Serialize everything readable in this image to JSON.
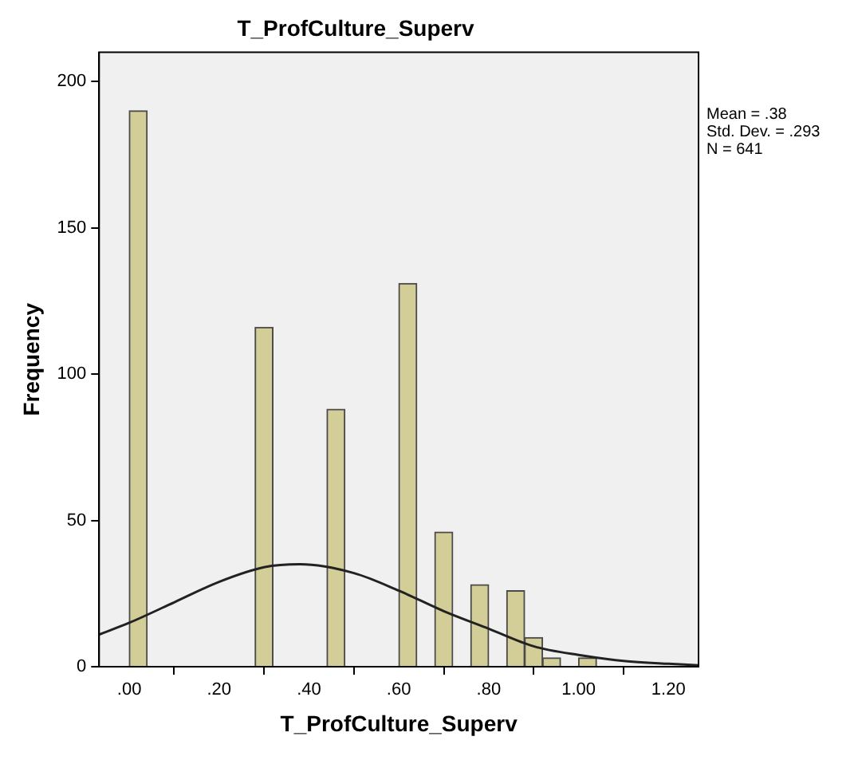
{
  "chart_data": {
    "type": "histogram",
    "title": "T_ProfCulture_Superv",
    "xlabel": "T_ProfCulture_Superv",
    "ylabel": "Frequency",
    "bins": [
      0,
      0.04,
      0.08,
      0.12,
      0.16,
      0.2,
      0.24,
      0.28,
      0.32,
      0.36,
      0.4,
      0.44,
      0.48,
      0.52,
      0.56,
      0.6,
      0.64,
      0.68,
      0.72,
      0.76,
      0.8,
      0.84,
      0.88,
      0.92,
      0.96,
      1.0,
      1.04
    ],
    "values": [
      190,
      0,
      0,
      0,
      0,
      0,
      0,
      116,
      0,
      0,
      0,
      88,
      0,
      0,
      0,
      131,
      0,
      46,
      0,
      28,
      0,
      26,
      10,
      3,
      0,
      3
    ],
    "color": "#d3ce97",
    "series": [
      {
        "type": "line",
        "color": "#222222",
        "x": [
          -0.067,
          0,
          0.1,
          0.2,
          0.3,
          0.38,
          0.5,
          0.6,
          0.7,
          0.8,
          0.9,
          1.0,
          1.1,
          1.2,
          1.267
        ],
        "values": [
          11,
          15,
          22,
          29,
          34,
          35,
          32,
          26,
          19,
          13,
          7,
          4,
          2,
          1,
          0.5
        ]
      }
    ],
    "xlim": [
      -0.067,
      1.267
    ],
    "xticks": [
      {
        "value": 0,
        "label": ".00"
      },
      {
        "value": 0.2,
        "label": ".20"
      },
      {
        "value": 0.4,
        "label": ".40"
      },
      {
        "value": 0.6,
        "label": ".60"
      },
      {
        "value": 0.8,
        "label": ".80"
      },
      {
        "value": 1.0,
        "label": "1.00"
      },
      {
        "value": 1.2,
        "label": "1.20"
      }
    ],
    "ylim": [
      0,
      210
    ],
    "yticks": [
      0,
      50,
      100,
      150,
      200
    ],
    "grid": false,
    "legend": false,
    "marker": "none",
    "annotations": [
      "Mean = .38",
      "Std. Dev. = .293",
      "N = 641"
    ]
  }
}
